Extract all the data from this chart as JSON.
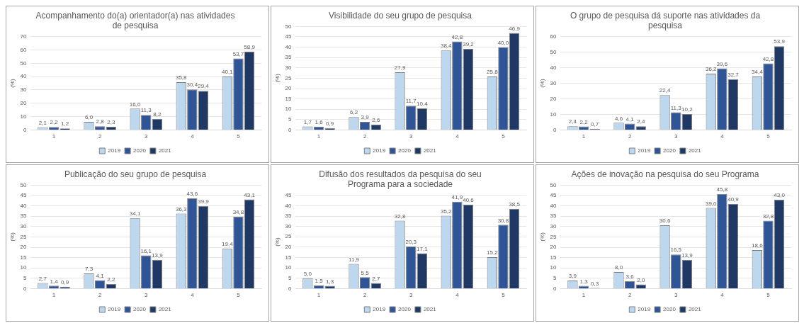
{
  "chart_data": [
    {
      "type": "bar",
      "title": "Acompanhamento do(a) orientador(a) nas atividades de pesquisa",
      "ylabel": "(%)",
      "categories": [
        "1",
        "2",
        "3",
        "4",
        "5"
      ],
      "ylim": [
        0,
        70
      ],
      "yticks": [
        0,
        10,
        20,
        30,
        40,
        50,
        60,
        70
      ],
      "grid": "y",
      "legend": "bottom",
      "series": [
        {
          "name": "2019",
          "color": "#bdd7ee",
          "values": [
            2.1,
            6.0,
            16.0,
            35.8,
            40.1
          ],
          "value_labels": [
            "2,1",
            "6,0",
            "16,0",
            "35,8",
            "40,1"
          ]
        },
        {
          "name": "2020",
          "color": "#2f5597",
          "values": [
            2.2,
            2.8,
            11.3,
            30.4,
            53.7
          ],
          "value_labels": [
            "2,2",
            "2,8",
            "11,3",
            "30,4",
            "53,7"
          ]
        },
        {
          "name": "2021",
          "color": "#1f3864",
          "values": [
            1.2,
            2.3,
            8.2,
            29.4,
            58.9
          ],
          "value_labels": [
            "1,2",
            "2,3",
            "8,2",
            "29,4",
            "58,9"
          ]
        }
      ]
    },
    {
      "type": "bar",
      "title": "Visibilidade do seu grupo de pesquisa",
      "ylabel": "(%)",
      "categories": [
        "1",
        "2",
        "3",
        "4",
        "5"
      ],
      "ylim": [
        0,
        50
      ],
      "yticks": [
        0,
        5,
        10,
        15,
        20,
        25,
        30,
        35,
        40,
        45,
        50
      ],
      "grid": "y",
      "legend": "bottom",
      "series": [
        {
          "name": "2019",
          "color": "#bdd7ee",
          "values": [
            1.7,
            6.2,
            27.9,
            38.4,
            25.8
          ],
          "value_labels": [
            "1,7",
            "6,2",
            "27,9",
            "38,4",
            "25,8"
          ]
        },
        {
          "name": "2020",
          "color": "#2f5597",
          "values": [
            1.6,
            3.9,
            11.7,
            42.8,
            40.0
          ],
          "value_labels": [
            "1,6",
            "3,9",
            "11,7",
            "42,8",
            "40,0"
          ]
        },
        {
          "name": "2021",
          "color": "#1f3864",
          "values": [
            0.9,
            2.6,
            10.4,
            39.2,
            46.9
          ],
          "value_labels": [
            "0,9",
            "2,6",
            "10,4",
            "39,2",
            "46,9"
          ]
        }
      ]
    },
    {
      "type": "bar",
      "title": "O grupo de pesquisa dá suporte nas atividades da pesquisa",
      "ylabel": "(%)",
      "categories": [
        "1",
        "2",
        "3",
        "4",
        "5"
      ],
      "ylim": [
        0,
        60
      ],
      "yticks": [
        0,
        10,
        20,
        30,
        40,
        50,
        60
      ],
      "grid": "y",
      "legend": "bottom",
      "series": [
        {
          "name": "2019",
          "color": "#bdd7ee",
          "values": [
            2.4,
            4.6,
            22.4,
            36.2,
            34.4
          ],
          "value_labels": [
            "2,4",
            "4,6",
            "22,4",
            "36,2",
            "34,4"
          ]
        },
        {
          "name": "2020",
          "color": "#2f5597",
          "values": [
            2.2,
            4.1,
            11.3,
            39.6,
            42.8
          ],
          "value_labels": [
            "2,2",
            "4,1",
            "11,3",
            "39,6",
            "42,8"
          ]
        },
        {
          "name": "2021",
          "color": "#1f3864",
          "values": [
            0.7,
            2.4,
            10.2,
            32.7,
            53.9
          ],
          "value_labels": [
            "0,7",
            "2,4",
            "10,2",
            "32,7",
            "53,9"
          ]
        }
      ]
    },
    {
      "type": "bar",
      "title": "Publicação do seu grupo de pesquisa",
      "ylabel": "(%)",
      "categories": [
        "1",
        "2",
        "3",
        "4",
        "5"
      ],
      "ylim": [
        0,
        50
      ],
      "yticks": [
        0,
        5,
        10,
        15,
        20,
        25,
        30,
        35,
        40,
        45,
        50
      ],
      "grid": "y",
      "legend": "bottom",
      "series": [
        {
          "name": "2019",
          "color": "#bdd7ee",
          "values": [
            2.7,
            7.3,
            34.1,
            36.3,
            19.4
          ],
          "value_labels": [
            "2,7",
            "7,3",
            "34,1",
            "36,3",
            "19,4"
          ]
        },
        {
          "name": "2020",
          "color": "#2f5597",
          "values": [
            1.4,
            4.1,
            16.1,
            43.6,
            34.8
          ],
          "value_labels": [
            "1,4",
            "4,1",
            "16,1",
            "43,6",
            "34,8"
          ]
        },
        {
          "name": "2021",
          "color": "#1f3864",
          "values": [
            0.9,
            2.2,
            13.9,
            39.9,
            43.1
          ],
          "value_labels": [
            "0,9",
            "2,2",
            "13,9",
            "39,9",
            "43,1"
          ]
        }
      ]
    },
    {
      "type": "bar",
      "title": "Difusão dos resultados da pesquisa do seu Programa para a sociedade",
      "ylabel": "(%)",
      "categories": [
        "1",
        "2",
        "3",
        "4",
        "5"
      ],
      "ylim": [
        0,
        45
      ],
      "yticks": [
        0,
        5,
        10,
        15,
        20,
        25,
        30,
        35,
        40,
        45
      ],
      "grid": "y",
      "legend": "bottom",
      "series": [
        {
          "name": "2019",
          "color": "#bdd7ee",
          "values": [
            5.0,
            11.9,
            32.8,
            35.2,
            15.2
          ],
          "value_labels": [
            "5,0",
            "11,9",
            "32,8",
            "35,2",
            "15,2"
          ]
        },
        {
          "name": "2020",
          "color": "#2f5597",
          "values": [
            1.5,
            5.5,
            20.3,
            41.9,
            30.8
          ],
          "value_labels": [
            "1,5",
            "5,5",
            "20,3",
            "41,9",
            "30,8"
          ]
        },
        {
          "name": "2021",
          "color": "#1f3864",
          "values": [
            1.3,
            2.7,
            17.1,
            40.6,
            38.5
          ],
          "value_labels": [
            "1,3",
            "2,7",
            "17,1",
            "40,6",
            "38,5"
          ]
        }
      ]
    },
    {
      "type": "bar",
      "title": "Ações de inovação na pesquisa do seu Programa",
      "ylabel": "(%)",
      "categories": [
        "1",
        "2",
        "3",
        "4",
        "5"
      ],
      "ylim": [
        0,
        50
      ],
      "yticks": [
        0,
        5,
        10,
        15,
        20,
        25,
        30,
        35,
        40,
        45,
        50
      ],
      "grid": "y",
      "legend": "bottom",
      "series": [
        {
          "name": "2019",
          "color": "#bdd7ee",
          "values": [
            3.9,
            8.0,
            30.6,
            39.0,
            18.6
          ],
          "value_labels": [
            "3,9",
            "8,0",
            "30,6",
            "39,0",
            "18,6"
          ]
        },
        {
          "name": "2020",
          "color": "#2f5597",
          "values": [
            1.3,
            3.6,
            16.5,
            45.8,
            32.8
          ],
          "value_labels": [
            "1,3",
            "3,6",
            "16,5",
            "45,8",
            "32,8"
          ]
        },
        {
          "name": "2021",
          "color": "#1f3864",
          "values": [
            0.3,
            2.0,
            13.9,
            40.9,
            43.0
          ],
          "value_labels": [
            "0,3",
            "2,0",
            "13,9",
            "40,9",
            "43,0"
          ]
        }
      ]
    }
  ]
}
